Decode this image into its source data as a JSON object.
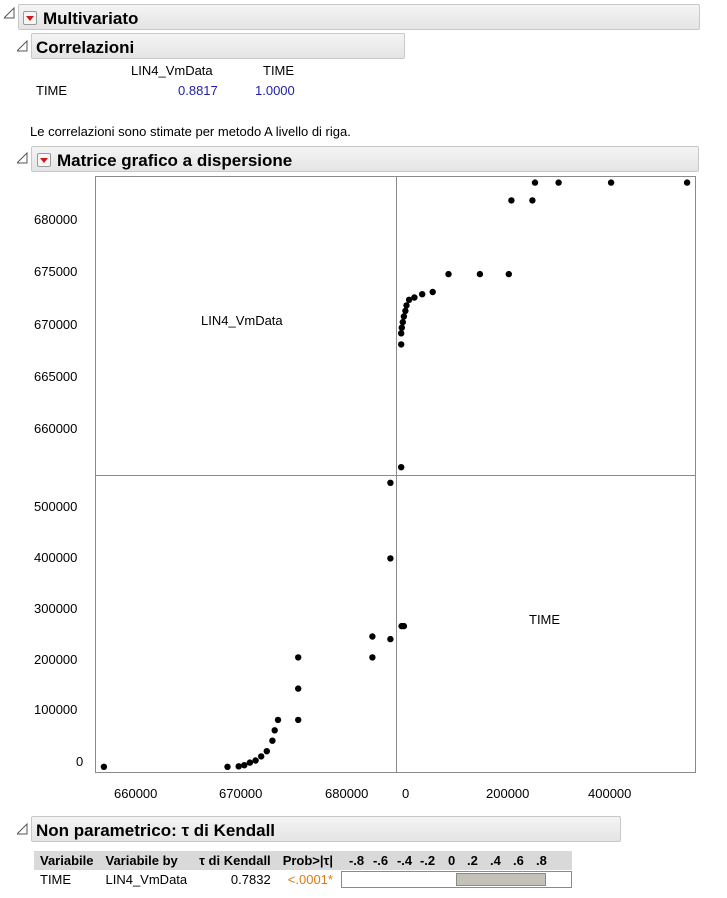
{
  "multivariate": {
    "title": "Multivariato"
  },
  "correlations": {
    "title": "Correlazioni",
    "col_headers": [
      "LIN4_VmData",
      "TIME"
    ],
    "rows": [
      {
        "label": "TIME",
        "values": [
          "0.8817",
          "1.0000"
        ]
      }
    ],
    "note": "Le correlazioni sono stimate per metodo A livello di riga."
  },
  "scatter_matrix": {
    "title": "Matrice grafico a dispersione",
    "cell_labels": [
      "LIN4_VmData",
      "TIME"
    ],
    "y_ticks_top": [
      "680000",
      "675000",
      "670000",
      "665000",
      "660000"
    ],
    "y_ticks_bottom": [
      "500000",
      "400000",
      "300000",
      "200000",
      "100000",
      "0"
    ],
    "x_ticks_left": [
      "660000",
      "670000",
      "680000"
    ],
    "x_ticks_right": [
      "0",
      "200000",
      "400000"
    ]
  },
  "chart_data": [
    {
      "type": "scatter",
      "panel": "top-right",
      "xlabel": "TIME",
      "ylabel": "LIN4_VmData",
      "xlim": [
        -10000,
        560000
      ],
      "ylim": [
        655800,
        682500
      ],
      "points": [
        [
          0,
          656500
        ],
        [
          0,
          667500
        ],
        [
          0,
          668500
        ],
        [
          1000,
          669000
        ],
        [
          3000,
          669500
        ],
        [
          5000,
          670000
        ],
        [
          8000,
          670500
        ],
        [
          10000,
          671000
        ],
        [
          15000,
          671500
        ],
        [
          25000,
          671700
        ],
        [
          40000,
          672000
        ],
        [
          60000,
          672200
        ],
        [
          90000,
          673800
        ],
        [
          150000,
          673800
        ],
        [
          205000,
          673800
        ],
        [
          210000,
          680400
        ],
        [
          250000,
          680400
        ],
        [
          255000,
          682000
        ],
        [
          258000,
          683000
        ],
        [
          270000,
          683200
        ],
        [
          300000,
          682000
        ],
        [
          400000,
          682000
        ],
        [
          545000,
          682000
        ]
      ]
    },
    {
      "type": "scatter",
      "panel": "bottom-left",
      "xlabel": "LIN4_VmData",
      "ylabel": "TIME",
      "xlim": [
        655800,
        682500
      ],
      "ylim": [
        -10000,
        560000
      ],
      "points": [
        [
          656500,
          0
        ],
        [
          667500,
          0
        ],
        [
          668500,
          1000
        ],
        [
          669000,
          3000
        ],
        [
          669500,
          8000
        ],
        [
          670000,
          12000
        ],
        [
          670500,
          20000
        ],
        [
          671000,
          30000
        ],
        [
          671500,
          50000
        ],
        [
          671700,
          70000
        ],
        [
          672000,
          90000
        ],
        [
          673800,
          90000
        ],
        [
          673800,
          150000
        ],
        [
          673800,
          210000
        ],
        [
          680400,
          210000
        ],
        [
          680400,
          250000
        ],
        [
          682000,
          245000
        ],
        [
          682000,
          400000
        ],
        [
          682000,
          545000
        ],
        [
          683000,
          270000
        ],
        [
          683200,
          270000
        ]
      ]
    }
  ],
  "kendall": {
    "title": "Non parametrico: τ di Kendall",
    "headers": [
      "Variabile",
      "Variabile by",
      "τ di Kendall",
      "Prob>|τ|"
    ],
    "bar_ticks": [
      "-.8",
      "-.6",
      "-.4",
      "-.2",
      "0",
      ".2",
      ".4",
      ".6",
      ".8"
    ],
    "row": {
      "var": "TIME",
      "by": "LIN4_VmData",
      "tau": "0.7832",
      "prob": "<.0001*"
    },
    "tau_value": 0.7832,
    "colors": {
      "prob": "#e07a10",
      "bar": "#c3c1b8"
    }
  }
}
